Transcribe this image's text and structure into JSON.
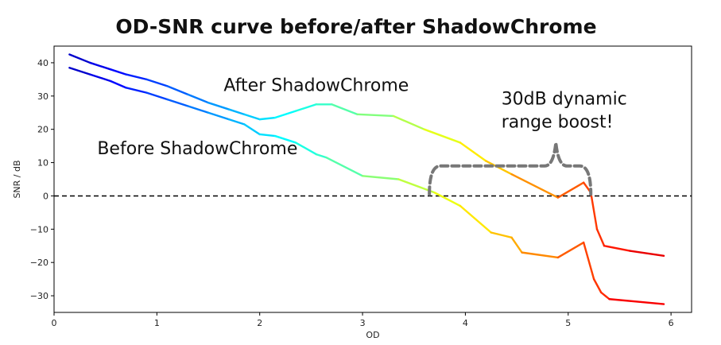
{
  "chart_data": {
    "type": "line",
    "title": "OD-SNR curve before/after ShadowChrome",
    "xlabel": "OD",
    "ylabel": "SNR / dB",
    "xlim": [
      0,
      6.2
    ],
    "ylim": [
      -35,
      45
    ],
    "xticks": [
      0,
      1,
      2,
      3,
      4,
      5,
      6
    ],
    "yticks": [
      40,
      30,
      20,
      10,
      0,
      -10,
      -20,
      -30
    ],
    "grid": false,
    "reference_line": {
      "y": 0,
      "style": "dashed",
      "color": "#000000"
    },
    "series": [
      {
        "name": "After ShadowChrome",
        "x": [
          0.15,
          0.35,
          0.55,
          0.7,
          0.9,
          1.1,
          1.3,
          1.5,
          1.7,
          1.85,
          2.0,
          2.15,
          2.35,
          2.55,
          2.7,
          2.95,
          3.3,
          3.6,
          3.95,
          4.2,
          4.45,
          4.9,
          5.15,
          5.22,
          5.28,
          5.35,
          5.6,
          5.93
        ],
        "y": [
          42.5,
          40,
          38,
          36.5,
          35,
          33,
          30.5,
          28,
          26,
          24.5,
          23,
          23.5,
          25.5,
          27.5,
          27.5,
          24.5,
          24,
          20,
          16,
          10.5,
          6.5,
          -0.5,
          4,
          1,
          -10,
          -15,
          -16.5,
          -18
        ]
      },
      {
        "name": "Before ShadowChrome",
        "x": [
          0.15,
          0.35,
          0.55,
          0.7,
          0.9,
          1.1,
          1.3,
          1.5,
          1.7,
          1.85,
          2.0,
          2.15,
          2.35,
          2.55,
          2.65,
          3.0,
          3.35,
          3.7,
          3.95,
          4.25,
          4.45,
          4.55,
          4.9,
          5.15,
          5.25,
          5.32,
          5.4,
          5.93
        ],
        "y": [
          38.5,
          36.5,
          34.5,
          32.5,
          31,
          29,
          27,
          25,
          23,
          21.5,
          18.5,
          18,
          16,
          12.5,
          11.5,
          6,
          5,
          1,
          -3,
          -11,
          -12.5,
          -17,
          -18.5,
          -14,
          -25,
          -29,
          -31,
          -32.5
        ]
      }
    ],
    "colormap": "jet",
    "annotations": [
      {
        "text": "After ShadowChrome",
        "x": 1.65,
        "y": 31.5
      },
      {
        "text": "Before ShadowChrome",
        "x": 0.42,
        "y": 12.5
      },
      {
        "text": "30dB dynamic",
        "x": 4.35,
        "y": 27.5
      },
      {
        "text": "range boost!",
        "x": 4.35,
        "y": 20.5
      }
    ],
    "brace": {
      "x_start": 3.65,
      "x_end": 5.22,
      "y_level": 9,
      "tip_x": 4.88,
      "tip_y": 16
    }
  }
}
